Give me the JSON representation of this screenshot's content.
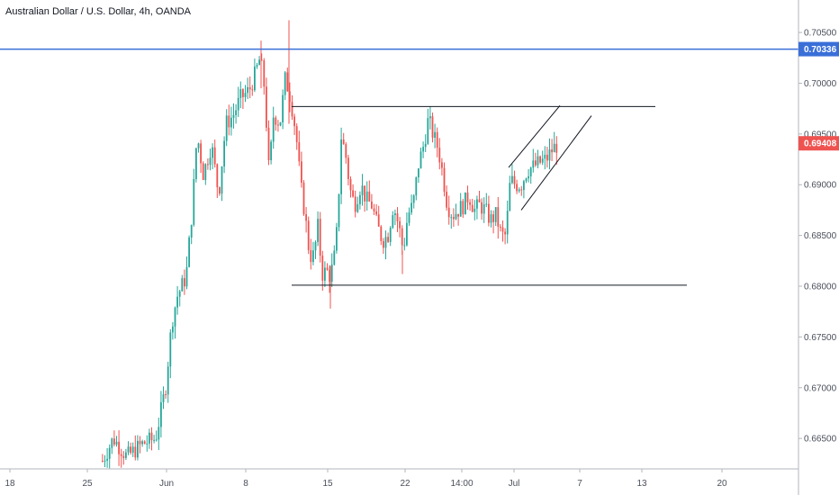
{
  "header": {
    "title": "Australian Dollar / U.S. Dollar, 4h, OANDA"
  },
  "colors": {
    "up": "#26a69a",
    "down": "#ef5350",
    "blue_line": "#3a6fd8",
    "trend_line": "#131722",
    "axis": "#4a4f5a"
  },
  "chart_data": {
    "type": "candlestick",
    "title": "Australian Dollar / U.S. Dollar, 4h, OANDA",
    "ylim": [
      0.662,
      0.7082
    ],
    "y_ticks": [
      "0.70500",
      "0.70000",
      "0.69500",
      "0.69000",
      "0.68500",
      "0.68000",
      "0.67500",
      "0.67000",
      "0.66500"
    ],
    "x_ticks": [
      "18",
      "25",
      "Jun",
      "8",
      "15",
      "22",
      "14:00",
      "Jul",
      "7",
      "13",
      "20"
    ],
    "price_labels": {
      "horizontal_line": "0.70336",
      "last_price": "0.69408"
    },
    "horizontal_line_value": 0.70336,
    "last_price_value": 0.69408,
    "support_level": 0.6801,
    "resistance_level": 0.6977,
    "channel_upper": [
      [
        0.6917,
        0.6978
      ]
    ],
    "channel_lower": [
      [
        0.6875,
        0.6968
      ]
    ]
  }
}
